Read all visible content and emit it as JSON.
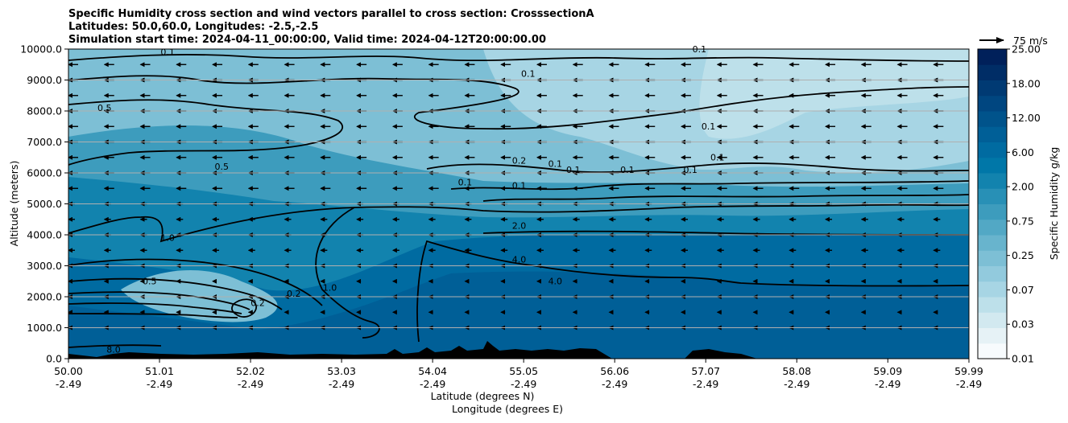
{
  "chart_data": {
    "type": "contour",
    "title_lines": [
      "Specific Humidity cross section and wind vectors parallel to cross section: CrosssectionA",
      "Latitudes: 50.0,60.0, Longitudes: -2.5,-2.5",
      "Simulation start time: 2024-04-11_00:00:00, Valid time: 2024-04-12T20:00:00.00"
    ],
    "ylabel": "Altitude (meters)",
    "xlabel_lines": [
      "Latitude (degrees N)",
      "Longitude (degrees E)"
    ],
    "yticks": [
      "0.0",
      "1000.0",
      "2000.0",
      "3000.0",
      "4000.0",
      "5000.0",
      "6000.0",
      "7000.0",
      "8000.0",
      "9000.0",
      "10000.0"
    ],
    "ylim": [
      0,
      10000
    ],
    "xticks": [
      {
        "lat": "50.00",
        "lon": "-2.49"
      },
      {
        "lat": "51.01",
        "lon": "-2.49"
      },
      {
        "lat": "52.02",
        "lon": "-2.49"
      },
      {
        "lat": "53.03",
        "lon": "-2.49"
      },
      {
        "lat": "54.04",
        "lon": "-2.49"
      },
      {
        "lat": "55.05",
        "lon": "-2.49"
      },
      {
        "lat": "56.06",
        "lon": "-2.49"
      },
      {
        "lat": "57.07",
        "lon": "-2.49"
      },
      {
        "lat": "58.08",
        "lon": "-2.49"
      },
      {
        "lat": "59.09",
        "lon": "-2.49"
      },
      {
        "lat": "59.99",
        "lon": "-2.49"
      }
    ],
    "xlim": [
      50.0,
      59.99
    ],
    "grid": "horizontal",
    "colorbar": {
      "label": "Specific Humidity g/kg",
      "ticks": [
        "0.01",
        "0.03",
        "0.07",
        "0.25",
        "0.75",
        "2.00",
        "6.00",
        "12.00",
        "18.00",
        "25.00"
      ],
      "colors": [
        "#f7fbfd",
        "#e6f2f6",
        "#d2e9f0",
        "#bde0ea",
        "#a7d5e4",
        "#92cadd",
        "#7dbfd5",
        "#68b4cd",
        "#52a8c5",
        "#3d9cbd",
        "#2890b6",
        "#1283ae",
        "#0077a8",
        "#006ba1",
        "#005f97",
        "#00538b",
        "#004680",
        "#003a73",
        "#002d66",
        "#00205a"
      ]
    },
    "quiver_key": {
      "label": "75 m/s",
      "value": 75,
      "units": "m/s"
    },
    "wind": {
      "direction": "toward decreasing latitude (leftward)",
      "row_altitudes_m": [
        1000,
        1500,
        2000,
        2500,
        3000,
        3500,
        4000,
        4500,
        5000,
        5500,
        6000,
        6500,
        7000,
        7500,
        8000,
        8500,
        9000,
        9500
      ],
      "column_latitudes_start": 50.0,
      "column_latitudes_step": 0.4,
      "column_count": 25
    },
    "contour_labels": [
      {
        "text": "0.1",
        "lat": 51.1,
        "alt": 9800
      },
      {
        "text": "0.1",
        "lat": 55.1,
        "alt": 9100
      },
      {
        "text": "0.1",
        "lat": 57.0,
        "alt": 9900
      },
      {
        "text": "0.5",
        "lat": 50.4,
        "alt": 8000
      },
      {
        "text": "0.5",
        "lat": 51.7,
        "alt": 6100
      },
      {
        "text": "0.2",
        "lat": 55.0,
        "alt": 6300
      },
      {
        "text": "0.1",
        "lat": 55.4,
        "alt": 6200
      },
      {
        "text": "0.1",
        "lat": 55.6,
        "alt": 6000
      },
      {
        "text": "0.1",
        "lat": 54.4,
        "alt": 5600
      },
      {
        "text": "0.1",
        "lat": 55.0,
        "alt": 5500
      },
      {
        "text": "0.1",
        "lat": 56.2,
        "alt": 6000
      },
      {
        "text": "0.1",
        "lat": 56.9,
        "alt": 6000
      },
      {
        "text": "0.1",
        "lat": 57.2,
        "alt": 6400
      },
      {
        "text": "0.1",
        "lat": 57.1,
        "alt": 7400
      },
      {
        "text": "1.0",
        "lat": 51.1,
        "alt": 3800
      },
      {
        "text": "2.0",
        "lat": 55.0,
        "alt": 4200
      },
      {
        "text": "4.0",
        "lat": 55.0,
        "alt": 3100
      },
      {
        "text": "4.0",
        "lat": 55.4,
        "alt": 2400
      },
      {
        "text": "1.0",
        "lat": 52.9,
        "alt": 2200
      },
      {
        "text": "0.2",
        "lat": 52.5,
        "alt": 2000
      },
      {
        "text": "0.5",
        "lat": 50.9,
        "alt": 2400
      },
      {
        "text": "0.2",
        "lat": 52.1,
        "alt": 1700
      },
      {
        "text": "8.0",
        "lat": 50.5,
        "alt": 200
      }
    ],
    "bottom_terrain": "black orography silhouette along the surface"
  }
}
